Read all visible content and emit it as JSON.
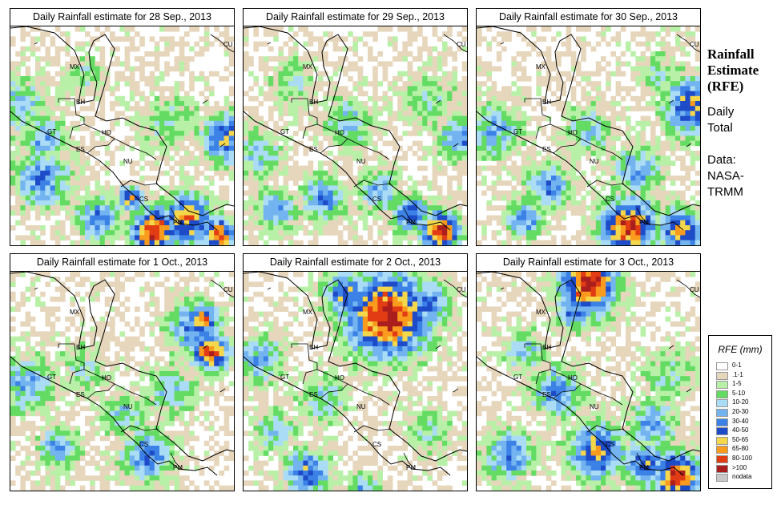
{
  "panels": [
    {
      "title": "Daily Rainfall estimate for  28 Sep., 2013",
      "scenario": "sep28"
    },
    {
      "title": "Daily Rainfall estimate for  29 Sep., 2013",
      "scenario": "sep29"
    },
    {
      "title": "Daily Rainfall estimate for  30 Sep., 2013",
      "scenario": "sep30"
    },
    {
      "title": "Daily Rainfall estimate for  1 Oct., 2013",
      "scenario": "oct1"
    },
    {
      "title": "Daily Rainfall estimate for  2 Oct., 2013",
      "scenario": "oct2"
    },
    {
      "title": "Daily Rainfall estimate for  3 Oct., 2013",
      "scenario": "oct3"
    }
  ],
  "map_labels": {
    "mx": "MX",
    "cu": "CU",
    "bh": "BH",
    "gt": "GT",
    "ho": "HO",
    "es": "ES",
    "nu": "NU",
    "cs": "CS",
    "pm": "PM"
  },
  "side": {
    "title_line1": "Rainfall",
    "title_line2": "Estimate",
    "title_line3": "(RFE)",
    "line1": "Daily",
    "line2": "Total",
    "line3": "Data:",
    "line4": "NASA-",
    "line5": "TRMM"
  },
  "legend": {
    "title": "RFE (mm)",
    "items": [
      {
        "label": "0-1",
        "color": "#ffffff"
      },
      {
        "label": ".1-1",
        "color": "#e6d6bc"
      },
      {
        "label": "1-5",
        "color": "#b9f0a8"
      },
      {
        "label": "5-10",
        "color": "#64dc64"
      },
      {
        "label": "10-20",
        "color": "#aadcf5"
      },
      {
        "label": "20-30",
        "color": "#73b4f0"
      },
      {
        "label": "30-40",
        "color": "#3c82e6"
      },
      {
        "label": "40-50",
        "color": "#1e4bc8"
      },
      {
        "label": "50-65",
        "color": "#f5d74b"
      },
      {
        "label": "65-80",
        "color": "#fa9b1e"
      },
      {
        "label": "80-100",
        "color": "#e13c14"
      },
      {
        "label": ">100",
        "color": "#aa1e1e"
      },
      {
        "label": "nodata",
        "color": "#c8c8c8"
      }
    ]
  }
}
